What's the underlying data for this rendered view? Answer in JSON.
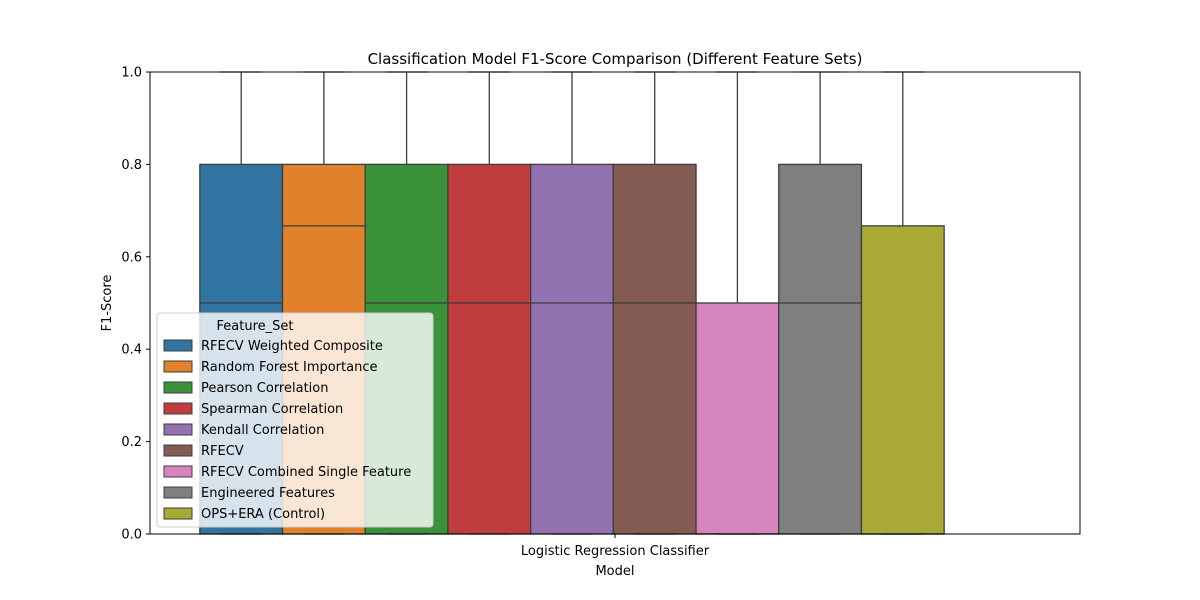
{
  "chart_data": {
    "type": "box",
    "title": "Classification Model F1-Score Comparison (Different Feature Sets)",
    "xlabel": "Model",
    "ylabel": "F1-Score",
    "ylim": [
      0,
      1.0
    ],
    "yticks": [
      "0.0",
      "0.2",
      "0.4",
      "0.6",
      "0.8",
      "1.0"
    ],
    "categories": [
      "Logistic Regression Classifier"
    ],
    "legend": {
      "title": "Feature_Set",
      "placement": "lower-left"
    },
    "series": [
      {
        "name": "RFECV Weighted Composite",
        "color": "#3274a1",
        "whisker_low": 0.0,
        "q1": 0.0,
        "median": 0.5,
        "q3": 0.8,
        "whisker_high": 1.0
      },
      {
        "name": "Random Forest Importance",
        "color": "#e1812c",
        "whisker_low": 0.0,
        "q1": 0.0,
        "median": 0.667,
        "q3": 0.8,
        "whisker_high": 1.0
      },
      {
        "name": "Pearson Correlation",
        "color": "#3a923a",
        "whisker_low": 0.0,
        "q1": 0.0,
        "median": 0.5,
        "q3": 0.8,
        "whisker_high": 1.0
      },
      {
        "name": "Spearman Correlation",
        "color": "#c03d3e",
        "whisker_low": 0.0,
        "q1": 0.0,
        "median": 0.5,
        "q3": 0.8,
        "whisker_high": 1.0
      },
      {
        "name": "Kendall Correlation",
        "color": "#9372b2",
        "whisker_low": 0.0,
        "q1": 0.0,
        "median": 0.5,
        "q3": 0.8,
        "whisker_high": 1.0
      },
      {
        "name": "RFECV",
        "color": "#845b53",
        "whisker_low": 0.0,
        "q1": 0.0,
        "median": 0.5,
        "q3": 0.8,
        "whisker_high": 1.0
      },
      {
        "name": "RFECV Combined Single Feature",
        "color": "#d684bd",
        "whisker_low": 0.0,
        "q1": 0.0,
        "median": 0.0,
        "q3": 0.5,
        "whisker_high": 1.0
      },
      {
        "name": "Engineered Features",
        "color": "#7f7f7f",
        "whisker_low": 0.0,
        "q1": 0.0,
        "median": 0.5,
        "q3": 0.8,
        "whisker_high": 1.0
      },
      {
        "name": "OPS+ERA (Control)",
        "color": "#a9aa35",
        "whisker_low": 0.0,
        "q1": 0.0,
        "median": 0.0,
        "q3": 0.667,
        "whisker_high": 1.0
      }
    ]
  }
}
